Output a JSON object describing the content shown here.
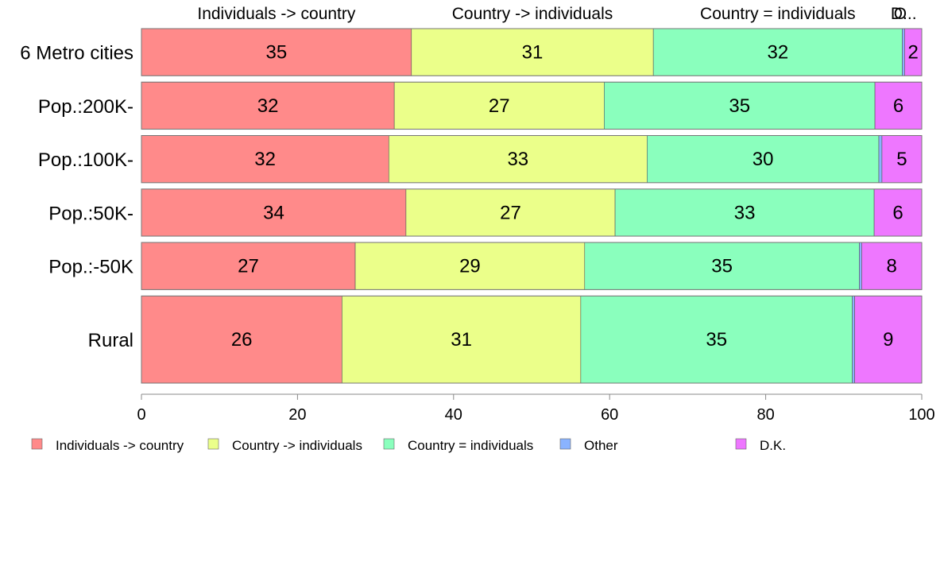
{
  "chart_data": {
    "type": "bar",
    "orientation": "horizontal",
    "stacked": true,
    "normalized_percent": true,
    "categories": [
      "6 Metro cities",
      "Pop.:200K-",
      "Pop.:100K-",
      "Pop.:50K-",
      "Pop.:-50K",
      "Rural"
    ],
    "series": [
      {
        "name": "Individuals -> country",
        "color": "#ff8a8a",
        "values": [
          34.6,
          32.4,
          31.7,
          33.9,
          27.4,
          25.7
        ]
      },
      {
        "name": "Country -> individuals",
        "color": "#ebff8a",
        "values": [
          31.0,
          26.9,
          33.1,
          26.8,
          29.4,
          30.6
        ]
      },
      {
        "name": "Country = individuals",
        "color": "#8affbd",
        "values": [
          31.9,
          34.7,
          29.7,
          33.2,
          35.2,
          34.8
        ]
      },
      {
        "name": "Other",
        "color": "#8ab3ff",
        "values": [
          0.3,
          0.0,
          0.4,
          0.0,
          0.3,
          0.3
        ]
      },
      {
        "name": "D.K.",
        "color": "#ee77ff",
        "values": [
          2.2,
          6.0,
          5.1,
          6.1,
          7.7,
          8.6
        ]
      }
    ],
    "data_labels": [
      [
        "35",
        "31",
        "32",
        "",
        "2"
      ],
      [
        "32",
        "27",
        "35",
        "",
        "6"
      ],
      [
        "32",
        "33",
        "30",
        "",
        "5"
      ],
      [
        "34",
        "27",
        "33",
        "",
        "6"
      ],
      [
        "27",
        "29",
        "35",
        "",
        "8"
      ],
      [
        "26",
        "31",
        "35",
        "",
        "9"
      ]
    ],
    "bar_weights": [
      1,
      1,
      1,
      1,
      1,
      1.85
    ],
    "top_labels": [
      "Individuals -> country",
      "Country -> individuals",
      "Country = individuals",
      "O",
      "D..."
    ],
    "x_ticks": [
      "0",
      "20",
      "40",
      "60",
      "80",
      "100"
    ],
    "xlim": [
      0,
      100
    ],
    "xlabel": "",
    "ylabel": "",
    "grid": false,
    "legend": {
      "placement": "bottom-left",
      "entries": [
        "Individuals -> country",
        "Country -> individuals",
        "Country = individuals",
        "Other",
        "D.K."
      ]
    }
  }
}
